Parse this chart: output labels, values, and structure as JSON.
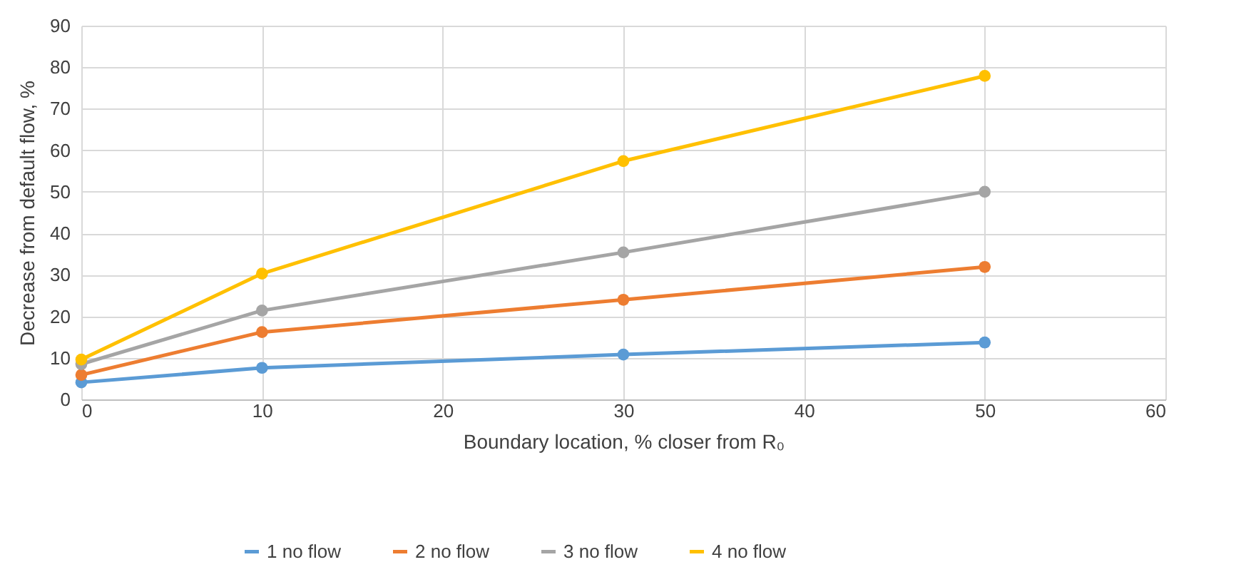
{
  "chart_data": {
    "type": "line",
    "xlabel": "Boundary location, % closer from R₀",
    "ylabel": "Decrease from default flow, %",
    "x": [
      0,
      10,
      30,
      50
    ],
    "series": [
      {
        "name": "1 no flow",
        "color": "#5b9bd5",
        "values": [
          4.1,
          7.6,
          10.8,
          13.7
        ]
      },
      {
        "name": "2 no flow",
        "color": "#ed7d31",
        "values": [
          5.9,
          16.2,
          24,
          31.9
        ]
      },
      {
        "name": "3 no flow",
        "color": "#a5a5a5",
        "values": [
          8.5,
          21.4,
          35.4,
          50
        ]
      },
      {
        "name": "4 no flow",
        "color": "#ffc000",
        "values": [
          9.6,
          30.3,
          57.4,
          77.9
        ]
      }
    ],
    "xlim": [
      0,
      60
    ],
    "xticks": [
      0,
      10,
      20,
      30,
      40,
      50,
      60
    ],
    "ylim": [
      0,
      90
    ],
    "yticks": [
      0,
      10,
      20,
      30,
      40,
      50,
      60,
      70,
      80,
      90
    ],
    "grid": true,
    "legend": "bottom",
    "marker": "circle",
    "line_style": "solid"
  }
}
